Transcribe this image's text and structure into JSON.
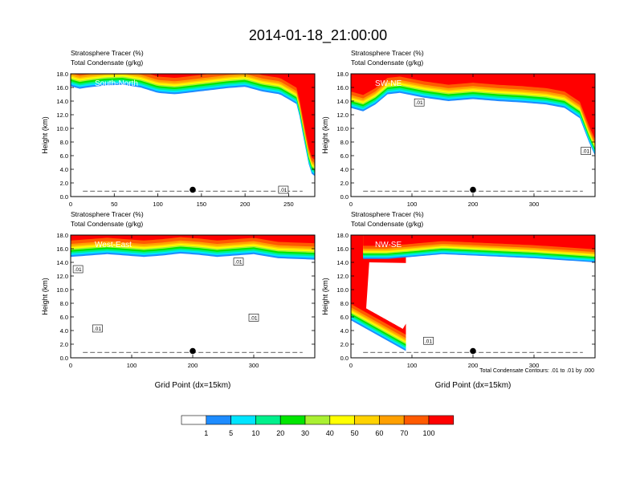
{
  "figure": {
    "title": "2014-01-18_21:00:00",
    "contour_info": "Total Condensate Contours: .01 to .01 by .000"
  },
  "colorbar": {
    "colors": [
      "#ffffff",
      "#1e8cff",
      "#00e5ff",
      "#00f08c",
      "#00e600",
      "#aaf032",
      "#ffff00",
      "#ffd200",
      "#ffa000",
      "#ff5a00",
      "#ff0000"
    ],
    "labels": [
      "1",
      "5",
      "10",
      "20",
      "30",
      "40",
      "50",
      "60",
      "70",
      "100"
    ]
  },
  "chart_data": [
    {
      "type": "heatmap",
      "name": "South-North",
      "subtitle_line1": "Stratosphere Tracer   (%)",
      "subtitle_line2": "Total Condensate   (g/kg)",
      "ylabel": "Height (km)",
      "xlabel": "",
      "xlim": [
        0,
        280
      ],
      "ylim": [
        0,
        18
      ],
      "x_ticks": [
        "0",
        "50",
        "100",
        "150",
        "200",
        "250"
      ],
      "x_tick_values": [
        0,
        50,
        100,
        150,
        200,
        250
      ],
      "y_ticks": [
        "0.0",
        "2.0",
        "4.0",
        "6.0",
        "8.0",
        "10.0",
        "12.0",
        "14.0",
        "16.0",
        "18.0"
      ],
      "tracer_base_km": [
        16.2,
        15.8,
        16.0,
        16.3,
        16.4,
        16.0,
        15.2,
        15.0,
        15.3,
        15.6,
        15.9,
        16.1,
        15.4,
        15.0,
        13.5,
        8.0,
        3.5,
        3.0
      ],
      "tracer_base_x": [
        0,
        10,
        20,
        40,
        60,
        80,
        100,
        120,
        140,
        160,
        180,
        200,
        220,
        240,
        260,
        268,
        275,
        280
      ],
      "contour_labels": [
        {
          "x": 244,
          "y": 1.0,
          "text": ".01"
        }
      ],
      "marker": {
        "x": 140,
        "y": 1.0
      }
    },
    {
      "type": "heatmap",
      "name": "SW-NE",
      "subtitle_line1": "Stratosphere Tracer   (%)",
      "subtitle_line2": "Total Condensate   (g/kg)",
      "ylabel": "Height (km)",
      "xlabel": "",
      "xlim": [
        0,
        400
      ],
      "ylim": [
        0,
        18
      ],
      "x_ticks": [
        "0",
        "100",
        "200",
        "300"
      ],
      "x_tick_values": [
        0,
        100,
        200,
        300
      ],
      "y_ticks": [
        "0.0",
        "2.0",
        "4.0",
        "6.0",
        "8.0",
        "10.0",
        "12.0",
        "14.0",
        "16.0",
        "18.0"
      ],
      "tracer_base_km": [
        13.0,
        12.5,
        13.5,
        15.0,
        15.2,
        14.5,
        14.0,
        14.3,
        14.0,
        13.8,
        13.5,
        13.0,
        11.5,
        8.0,
        6.0
      ],
      "tracer_base_x": [
        0,
        20,
        40,
        60,
        80,
        120,
        160,
        200,
        240,
        280,
        320,
        350,
        375,
        390,
        400
      ],
      "contour_labels": [
        {
          "x": 112,
          "y": 13.8,
          "text": ".01"
        },
        {
          "x": 385,
          "y": 6.7,
          "text": ".01"
        }
      ],
      "marker": {
        "x": 200,
        "y": 1.0
      }
    },
    {
      "type": "heatmap",
      "name": "West-East",
      "subtitle_line1": "Stratosphere Tracer   (%)",
      "subtitle_line2": "Total Condensate   (g/kg)",
      "ylabel": "Height (km)",
      "xlabel": "Grid Point (dx=15km)",
      "xlim": [
        0,
        400
      ],
      "ylim": [
        0,
        18
      ],
      "x_ticks": [
        "0",
        "100",
        "200",
        "300"
      ],
      "x_tick_values": [
        0,
        100,
        200,
        300
      ],
      "y_ticks": [
        "0.0",
        "2.0",
        "4.0",
        "6.0",
        "8.0",
        "10.0",
        "12.0",
        "14.0",
        "16.0",
        "18.0"
      ],
      "tracer_base_km": [
        14.8,
        15.0,
        15.2,
        15.0,
        14.8,
        15.0,
        15.3,
        15.1,
        14.8,
        15.0,
        15.2,
        14.6,
        14.5,
        14.4
      ],
      "tracer_base_x": [
        0,
        30,
        60,
        90,
        120,
        150,
        180,
        210,
        240,
        270,
        300,
        340,
        370,
        400
      ],
      "contour_labels": [
        {
          "x": 12,
          "y": 13.0,
          "text": ".01"
        },
        {
          "x": 44,
          "y": 4.3,
          "text": ".01"
        },
        {
          "x": 275,
          "y": 14.1,
          "text": ".01"
        },
        {
          "x": 300,
          "y": 5.9,
          "text": ".01"
        }
      ],
      "marker": {
        "x": 200,
        "y": 1.0
      }
    },
    {
      "type": "heatmap",
      "name": "NW-SE",
      "subtitle_line1": "Stratosphere Tracer   (%)",
      "subtitle_line2": "Total Condensate   (g/kg)",
      "ylabel": "Height (km)",
      "xlabel": "Grid Point (dx=15km)",
      "xlim": [
        0,
        400
      ],
      "ylim": [
        0,
        18
      ],
      "x_ticks": [
        "0",
        "100",
        "200",
        "300"
      ],
      "x_tick_values": [
        0,
        100,
        200,
        300
      ],
      "y_ticks": [
        "0.0",
        "2.0",
        "4.0",
        "6.0",
        "8.0",
        "10.0",
        "12.0",
        "14.0",
        "16.0",
        "18.0"
      ],
      "tracer_base_km": [
        5.5,
        4.5,
        3.5,
        2.5,
        1.5,
        1.0
      ],
      "tracer_base_x": [
        0,
        20,
        40,
        60,
        80,
        90
      ],
      "upper_base_km": [
        14.5,
        14.5,
        14.8,
        15.2,
        15.0,
        14.8,
        14.6,
        14.3,
        14.0
      ],
      "upper_base_x": [
        20,
        60,
        100,
        150,
        200,
        250,
        300,
        350,
        400
      ],
      "contour_labels": [
        {
          "x": 127,
          "y": 2.5,
          "text": ".01"
        }
      ],
      "marker": {
        "x": 200,
        "y": 1.0
      }
    }
  ]
}
